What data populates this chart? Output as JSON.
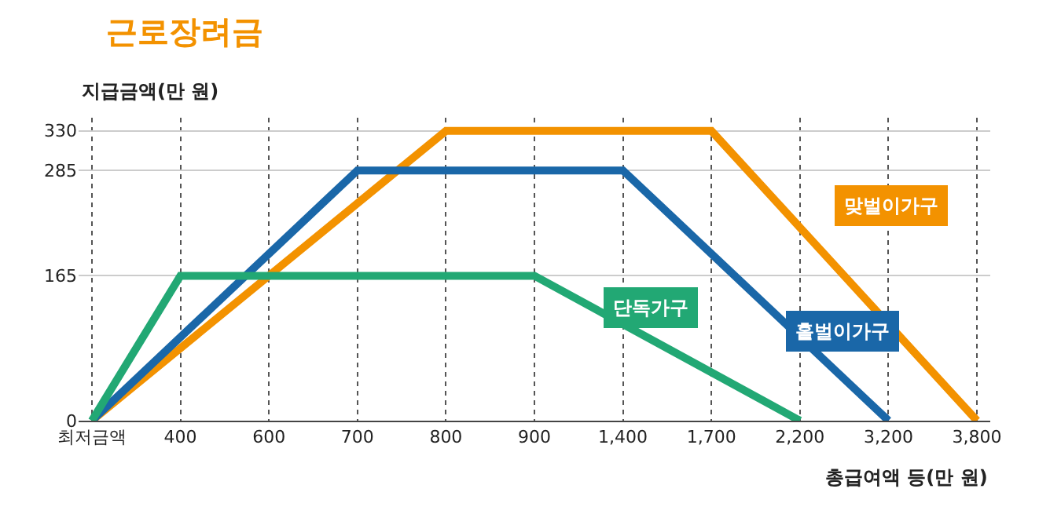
{
  "chart_data": {
    "type": "line",
    "title": "근로장려금",
    "ylabel": "지급금액(만 원)",
    "xlabel": "총급여액 등(만 원)",
    "categories": [
      "최저금액",
      "400",
      "600",
      "700",
      "800",
      "900",
      "1,400",
      "1,700",
      "2,200",
      "3,200",
      "3,800"
    ],
    "series": [
      {
        "name": "맞벌이가구",
        "color": "#f39200",
        "values": [
          0,
          null,
          null,
          null,
          330,
          null,
          null,
          330,
          null,
          null,
          0
        ]
      },
      {
        "name": "홑벌이가구",
        "color": "#1a67a8",
        "values": [
          0,
          null,
          null,
          285,
          null,
          null,
          285,
          null,
          null,
          0,
          null
        ]
      },
      {
        "name": "단독가구",
        "color": "#22a874",
        "values": [
          0,
          165,
          null,
          null,
          null,
          165,
          null,
          null,
          0,
          null,
          null
        ]
      }
    ],
    "ylim": [
      0,
      345
    ],
    "yticks": [
      0,
      165,
      285,
      330
    ],
    "grid": true,
    "legend": false,
    "marker": "none",
    "line_style": "solid"
  }
}
